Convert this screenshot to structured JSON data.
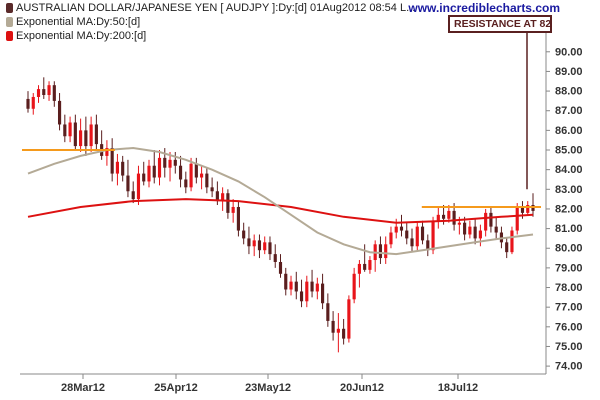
{
  "legend": [
    {
      "label": "AUSTRALIAN DOLLAR/JAPANESE YEN [ AUDJPY ]:Dy:[d]  01Aug2012 08:54 L...",
      "color": "#5a2a2a"
    },
    {
      "label": "Exponential MA:Dy:50:[d]",
      "color": "#b4aa96"
    },
    {
      "label": "Exponential MA:Dy:200:[d]",
      "color": "#dd1111"
    }
  ],
  "watermark": "www.incrediblecharts.com",
  "annotation": "RESISTANCE AT 82",
  "chart_data": {
    "type": "candlestick",
    "x_tick_labels": [
      "28Mar12",
      "25Apr12",
      "23May12",
      "20Jun12",
      "18Jul12"
    ],
    "y_ticks": [
      74,
      75,
      76,
      77,
      78,
      79,
      80,
      81,
      82,
      83,
      84,
      85,
      86,
      87,
      88,
      89,
      90
    ],
    "ylim": [
      73.7,
      90.6
    ],
    "colors": {
      "up": "#e8141a",
      "down": "#5a1e1e",
      "ma50": "#b4aa96",
      "ma200": "#dd1111",
      "resistance": "#f59a1c",
      "annotation": "#5a2020"
    },
    "candles": [
      [
        87.6,
        88.0,
        86.9,
        87.1
      ],
      [
        87.1,
        87.9,
        86.8,
        87.7
      ],
      [
        87.7,
        88.3,
        87.4,
        88.1
      ],
      [
        88.1,
        88.7,
        87.6,
        87.8
      ],
      [
        87.8,
        88.5,
        87.5,
        88.3
      ],
      [
        88.3,
        88.5,
        87.2,
        87.5
      ],
      [
        87.5,
        87.9,
        86.0,
        86.3
      ],
      [
        86.3,
        86.8,
        85.4,
        85.7
      ],
      [
        85.7,
        86.7,
        85.4,
        86.4
      ],
      [
        86.4,
        86.8,
        85.0,
        85.2
      ],
      [
        85.2,
        86.6,
        84.9,
        86.0
      ],
      [
        86.0,
        86.7,
        84.7,
        85.2
      ],
      [
        85.2,
        86.7,
        84.9,
        86.3
      ],
      [
        86.3,
        86.8,
        85.0,
        85.3
      ],
      [
        85.3,
        86.0,
        84.5,
        84.7
      ],
      [
        84.7,
        85.5,
        84.2,
        85.1
      ],
      [
        85.1,
        85.6,
        83.4,
        83.8
      ],
      [
        83.8,
        84.8,
        83.2,
        84.4
      ],
      [
        84.4,
        84.7,
        83.4,
        83.7
      ],
      [
        83.7,
        84.5,
        82.6,
        82.9
      ],
      [
        82.9,
        83.4,
        82.3,
        82.5
      ],
      [
        82.5,
        84.2,
        82.2,
        83.8
      ],
      [
        83.8,
        84.4,
        83.2,
        83.4
      ],
      [
        83.4,
        84.5,
        83.1,
        84.2
      ],
      [
        84.2,
        85.0,
        83.3,
        83.6
      ],
      [
        83.6,
        85.0,
        83.2,
        84.6
      ],
      [
        84.6,
        85.1,
        83.6,
        84.1
      ],
      [
        84.1,
        84.9,
        83.4,
        84.5
      ],
      [
        84.5,
        84.9,
        83.8,
        84.2
      ],
      [
        84.2,
        84.7,
        83.1,
        83.5
      ],
      [
        83.5,
        83.9,
        82.8,
        83.1
      ],
      [
        83.1,
        84.6,
        82.9,
        84.3
      ],
      [
        84.3,
        84.6,
        83.3,
        83.6
      ],
      [
        83.6,
        84.2,
        83.0,
        83.8
      ],
      [
        83.8,
        84.1,
        82.8,
        83.1
      ],
      [
        83.1,
        83.6,
        82.6,
        82.9
      ],
      [
        82.9,
        83.4,
        82.2,
        82.4
      ],
      [
        82.4,
        83.1,
        81.9,
        82.8
      ],
      [
        82.8,
        83.0,
        81.5,
        81.8
      ],
      [
        81.8,
        82.5,
        81.3,
        82.1
      ],
      [
        82.1,
        82.4,
        80.6,
        80.9
      ],
      [
        80.9,
        81.3,
        80.2,
        80.5
      ],
      [
        80.5,
        81.1,
        79.7,
        80.1
      ],
      [
        80.1,
        80.7,
        79.6,
        80.4
      ],
      [
        80.4,
        80.7,
        79.5,
        79.9
      ],
      [
        79.9,
        80.6,
        79.7,
        80.3
      ],
      [
        80.3,
        80.6,
        79.4,
        79.7
      ],
      [
        79.7,
        80.2,
        79.0,
        79.3
      ],
      [
        79.3,
        79.7,
        78.5,
        78.7
      ],
      [
        78.7,
        79.0,
        77.6,
        77.9
      ],
      [
        77.9,
        78.6,
        77.6,
        78.3
      ],
      [
        78.3,
        78.8,
        77.4,
        77.8
      ],
      [
        77.8,
        78.4,
        77.0,
        77.3
      ],
      [
        77.3,
        78.6,
        77.0,
        78.3
      ],
      [
        78.3,
        78.9,
        77.5,
        77.8
      ],
      [
        77.8,
        78.5,
        77.4,
        78.2
      ],
      [
        78.2,
        78.7,
        76.9,
        77.2
      ],
      [
        77.2,
        77.7,
        76.0,
        76.3
      ],
      [
        76.3,
        76.8,
        75.3,
        75.7
      ],
      [
        75.7,
        76.7,
        74.7,
        75.9
      ],
      [
        75.9,
        76.4,
        75.1,
        75.4
      ],
      [
        75.4,
        77.6,
        75.2,
        77.4
      ],
      [
        77.4,
        79.0,
        77.2,
        78.7
      ],
      [
        78.7,
        79.4,
        78.0,
        79.2
      ],
      [
        79.2,
        80.2,
        78.8,
        78.9
      ],
      [
        78.9,
        79.6,
        78.7,
        79.4
      ],
      [
        79.4,
        80.4,
        78.8,
        80.2
      ],
      [
        80.2,
        80.6,
        79.2,
        79.5
      ],
      [
        79.5,
        80.6,
        79.2,
        80.2
      ],
      [
        80.2,
        81.1,
        80.0,
        80.8
      ],
      [
        80.8,
        81.5,
        80.5,
        81.1
      ],
      [
        81.1,
        81.7,
        80.6,
        80.9
      ],
      [
        80.9,
        81.3,
        80.2,
        80.5
      ],
      [
        80.5,
        81.0,
        79.8,
        80.1
      ],
      [
        80.1,
        81.3,
        79.9,
        81.1
      ],
      [
        81.1,
        81.4,
        80.2,
        80.4
      ],
      [
        80.4,
        80.7,
        79.6,
        79.9
      ],
      [
        79.9,
        81.6,
        79.7,
        81.4
      ],
      [
        81.4,
        82.1,
        81.0,
        81.7
      ],
      [
        81.7,
        82.2,
        81.2,
        81.5
      ],
      [
        81.5,
        82.2,
        81.3,
        81.9
      ],
      [
        81.9,
        82.3,
        80.9,
        81.2
      ],
      [
        81.2,
        81.6,
        80.7,
        81.3
      ],
      [
        81.3,
        81.6,
        80.4,
        80.7
      ],
      [
        80.7,
        81.4,
        80.5,
        81.1
      ],
      [
        81.1,
        81.5,
        80.2,
        80.5
      ],
      [
        80.5,
        81.2,
        80.1,
        80.9
      ],
      [
        80.9,
        82.0,
        80.6,
        81.8
      ],
      [
        81.8,
        82.1,
        80.8,
        81.1
      ],
      [
        81.1,
        81.6,
        80.5,
        80.8
      ],
      [
        80.8,
        81.1,
        80.0,
        80.3
      ],
      [
        80.3,
        80.5,
        79.5,
        79.8
      ],
      [
        79.8,
        81.1,
        79.7,
        80.9
      ],
      [
        80.9,
        82.3,
        80.7,
        82.1
      ],
      [
        82.1,
        82.4,
        81.5,
        81.8
      ],
      [
        81.8,
        82.4,
        81.7,
        82.2
      ],
      [
        82.2,
        82.8,
        81.6,
        81.9
      ]
    ],
    "ema50": [
      [
        0,
        83.8
      ],
      [
        5,
        84.3
      ],
      [
        10,
        84.7
      ],
      [
        15,
        85.0
      ],
      [
        20,
        85.1
      ],
      [
        25,
        84.9
      ],
      [
        30,
        84.5
      ],
      [
        35,
        84.0
      ],
      [
        40,
        83.4
      ],
      [
        45,
        82.6
      ],
      [
        50,
        81.7
      ],
      [
        55,
        80.8
      ],
      [
        60,
        80.2
      ],
      [
        65,
        79.8
      ],
      [
        70,
        79.7
      ],
      [
        75,
        79.9
      ],
      [
        80,
        80.1
      ],
      [
        85,
        80.3
      ],
      [
        90,
        80.5
      ],
      [
        96,
        80.7
      ]
    ],
    "ema200": [
      [
        0,
        81.6
      ],
      [
        10,
        82.1
      ],
      [
        20,
        82.4
      ],
      [
        30,
        82.5
      ],
      [
        40,
        82.4
      ],
      [
        50,
        82.1
      ],
      [
        60,
        81.6
      ],
      [
        70,
        81.3
      ],
      [
        80,
        81.4
      ],
      [
        90,
        81.6
      ],
      [
        96,
        81.7
      ]
    ],
    "resistance_lines": [
      {
        "value": 85.0,
        "from": 0,
        "to": 15
      },
      {
        "value": 82.1,
        "from": 76,
        "to": 96
      }
    ]
  }
}
